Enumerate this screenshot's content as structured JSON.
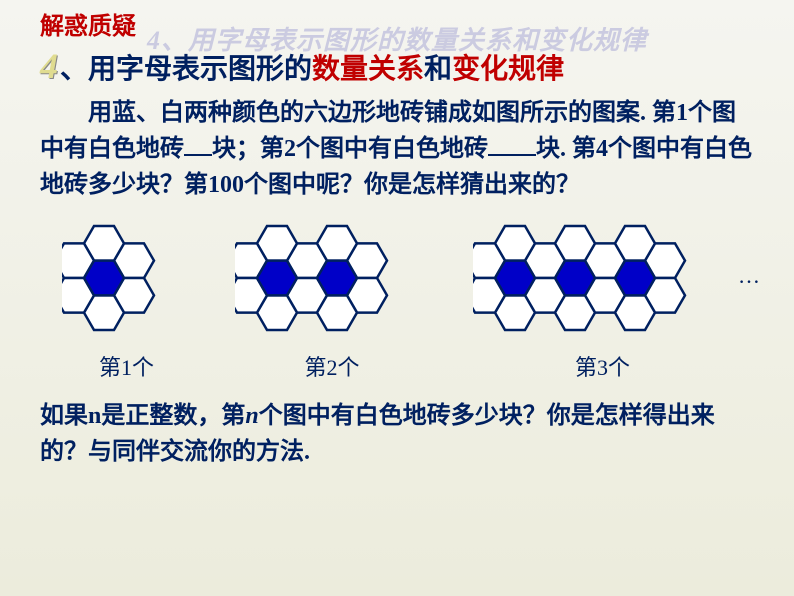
{
  "watermark": "4、用字母表示图形的数量关系和变化规律",
  "header": "解惑质疑",
  "topic": {
    "num": "4",
    "sep": "、",
    "part1": "用字母表示图形的",
    "part2": "数量关系",
    "part3": "和",
    "part4": "变化规律"
  },
  "problem": {
    "line": "用蓝、白两种颜色的六边形地砖铺成如图所示的图案. 第1个图中有白色地砖__块；第2个图中有白色地砖____块. 第4个图中有白色地砖多少块？第100个图中呢？你是怎样猜出来的？",
    "p1": "用蓝、白两种颜色的六边形地砖铺成如图所示的图案. 第",
    "p2": "1",
    "p3": "个图中有白色地砖",
    "p4": "块；第",
    "p5": "2",
    "p6": "个图中有白色地砖",
    "p7": "块. 第",
    "p8": "4",
    "p9": "个图中有白色地砖多少块？第",
    "p10": "100",
    "p11": "个图中呢？你是怎样猜出来的？"
  },
  "figures": {
    "labels": [
      "第1个",
      "第2个",
      "第3个"
    ],
    "dots": "…",
    "hex": {
      "radius": 20,
      "stroke": "#002060",
      "stroke_width": 2.5,
      "fill_white": "#ffffff",
      "fill_blue": "#0000c8"
    }
  },
  "question2": {
    "p1": "如果n是正整数，第",
    "p2": "n",
    "p3": "个图中有白色地砖多少块？你是怎样得出来的？与同伴交流你的方法."
  }
}
